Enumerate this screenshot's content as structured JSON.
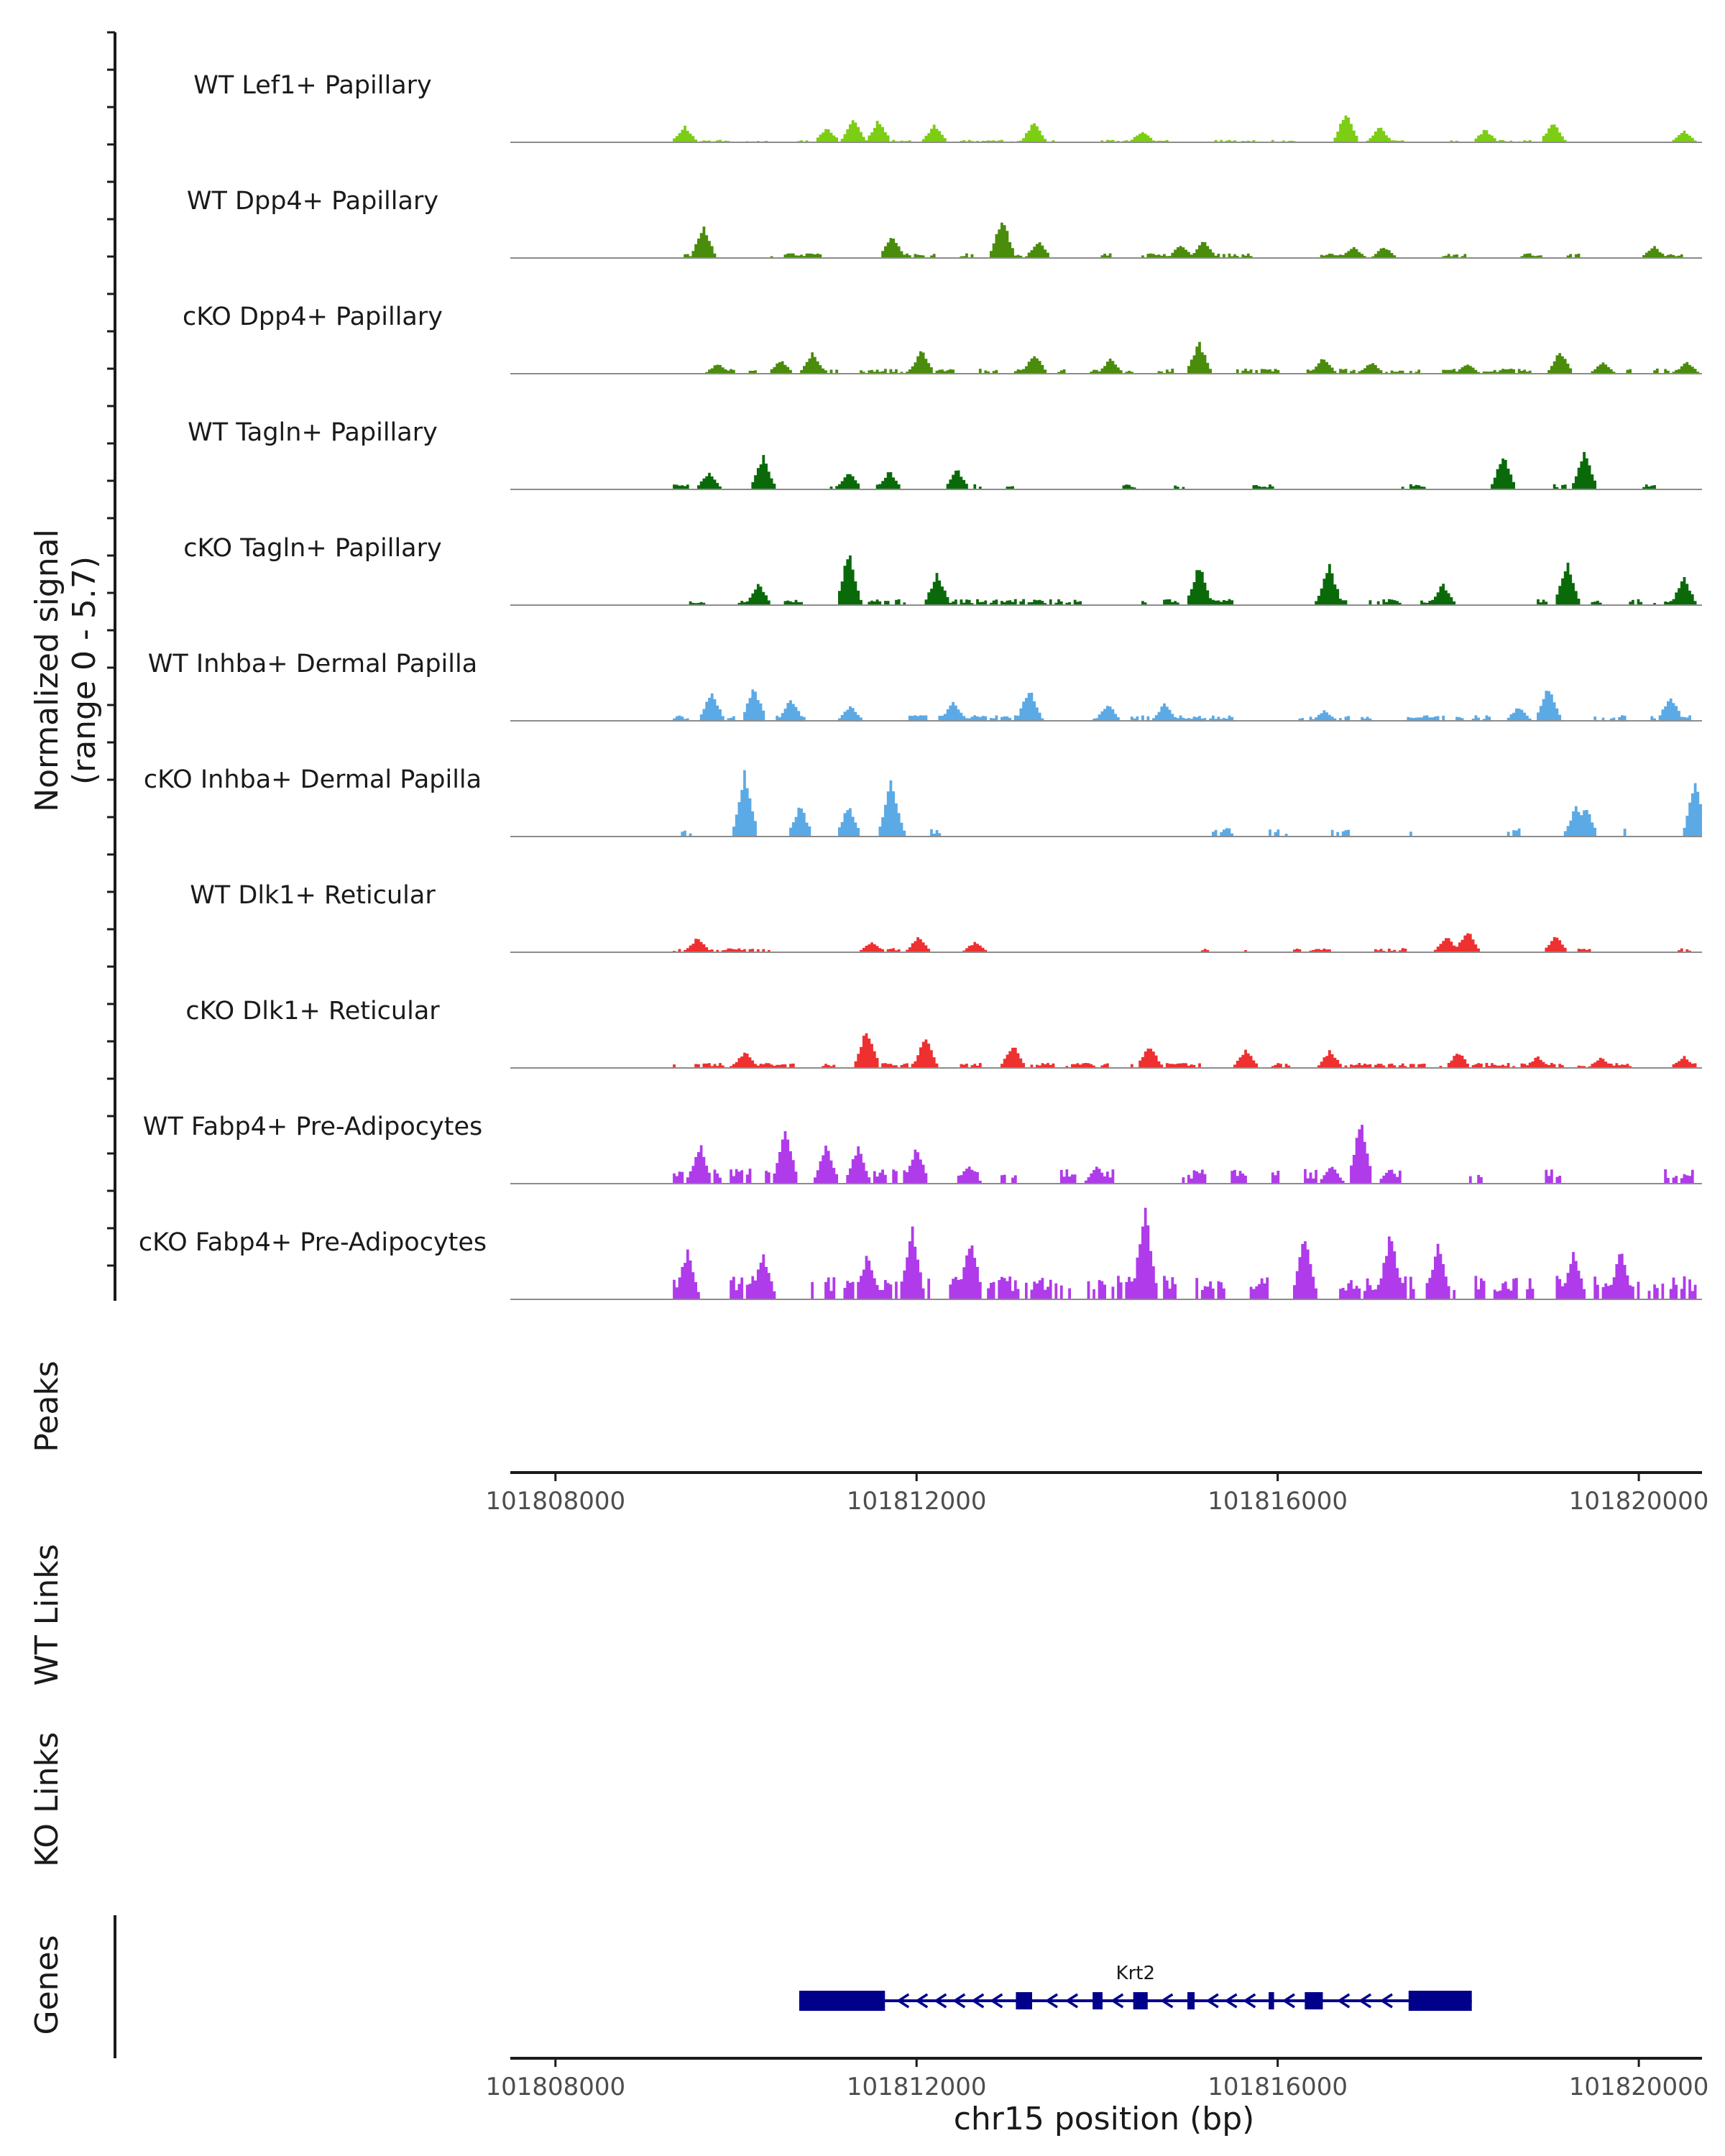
{
  "chart_data": {
    "type": "area",
    "title": "",
    "region": {
      "chromosome": "chr15",
      "start": 101807500,
      "end": 101820700
    },
    "y_axis_label_line1": "Normalized signal",
    "y_axis_label_line2": "(range 0 - 5.7)",
    "ylim": [
      0,
      5.7
    ],
    "x_ticks": [
      "101808000",
      "101812000",
      "101816000",
      "101820000"
    ],
    "x_tick_values": [
      101808000,
      101812000,
      101816000,
      101820000
    ],
    "xlabel": "chr15 position (bp)",
    "panel_labels": {
      "peaks": "Peaks",
      "wt_links": "WT Links",
      "ko_links": "KO Links",
      "genes": "Genes"
    },
    "gene": {
      "name": "Krt2",
      "start": 101810700,
      "end": 101818150,
      "strand": "-",
      "exons": [
        [
          101810700,
          101811650
        ],
        [
          101813100,
          101813280
        ],
        [
          101813950,
          101814060
        ],
        [
          101814400,
          101814560
        ],
        [
          101815000,
          101815080
        ],
        [
          101815900,
          101815960
        ],
        [
          101816300,
          101816500
        ],
        [
          101817450,
          101818150
        ]
      ]
    },
    "series": [
      {
        "name": "WT Lef1+ Papillary",
        "color": "#7CCD14",
        "level": 0.13,
        "gap": 0.55,
        "seed": 11,
        "peaks": [
          [
            101809430,
            1.4
          ],
          [
            101811010,
            1.3
          ],
          [
            101811300,
            2.0
          ],
          [
            101811580,
            1.9
          ],
          [
            101812200,
            1.5
          ],
          [
            101813300,
            1.7
          ],
          [
            101814500,
            1.0
          ],
          [
            101816760,
            2.6
          ],
          [
            101817130,
            1.3
          ],
          [
            101818300,
            1.1
          ],
          [
            101819050,
            1.7
          ],
          [
            101820500,
            1.0
          ]
        ]
      },
      {
        "name": "WT Dpp4+ Papillary",
        "color": "#4A8C0B",
        "level": 0.25,
        "gap": 0.65,
        "seed": 23,
        "peaks": [
          [
            101809640,
            2.6
          ],
          [
            101811730,
            1.9
          ],
          [
            101812950,
            3.5
          ],
          [
            101813350,
            1.5
          ],
          [
            101814930,
            1.2
          ],
          [
            101815180,
            1.5
          ],
          [
            101816840,
            1.0
          ],
          [
            101817180,
            1.0
          ],
          [
            101820170,
            1.0
          ]
        ]
      },
      {
        "name": "cKO Dpp4+ Papillary",
        "color": "#4A8C0B",
        "level": 0.27,
        "gap": 0.42,
        "seed": 37,
        "peaks": [
          [
            101809800,
            0.9
          ],
          [
            101810500,
            1.2
          ],
          [
            101810850,
            1.8
          ],
          [
            101812060,
            2.0
          ],
          [
            101813310,
            1.7
          ],
          [
            101814150,
            1.3
          ],
          [
            101815130,
            2.7
          ],
          [
            101816510,
            1.4
          ],
          [
            101817040,
            1.0
          ],
          [
            101818100,
            0.9
          ],
          [
            101819130,
            2.0
          ],
          [
            101819600,
            1.0
          ],
          [
            101820530,
            1.0
          ]
        ]
      },
      {
        "name": "WT Tagln+ Papillary",
        "color": "#0A6A0A",
        "level": 0.28,
        "gap": 0.8,
        "seed": 41,
        "peaks": [
          [
            101809700,
            1.5
          ],
          [
            101810300,
            2.9
          ],
          [
            101811250,
            1.6
          ],
          [
            101811700,
            1.6
          ],
          [
            101812450,
            1.7
          ],
          [
            101818500,
            3.0
          ],
          [
            101819400,
            3.2
          ]
        ]
      },
      {
        "name": "cKO Tagln+ Papillary",
        "color": "#0A6A0A",
        "level": 0.32,
        "gap": 0.48,
        "seed": 53,
        "peaks": [
          [
            101810250,
            1.9
          ],
          [
            101811250,
            4.5
          ],
          [
            101812230,
            2.8
          ],
          [
            101815130,
            3.5
          ],
          [
            101816570,
            3.5
          ],
          [
            101817830,
            1.8
          ],
          [
            101819210,
            3.7
          ],
          [
            101820500,
            2.4
          ]
        ]
      },
      {
        "name": "WT Inhba+ Dermal Papilla",
        "color": "#5BAAE6",
        "level": 0.3,
        "gap": 0.4,
        "seed": 67,
        "peaks": [
          [
            101809730,
            2.6
          ],
          [
            101810200,
            2.8
          ],
          [
            101810610,
            1.9
          ],
          [
            101811270,
            1.3
          ],
          [
            101812410,
            1.7
          ],
          [
            101813250,
            2.8
          ],
          [
            101814120,
            1.5
          ],
          [
            101814750,
            1.5
          ],
          [
            101816520,
            0.9
          ],
          [
            101818670,
            1.2
          ],
          [
            101819000,
            2.9
          ],
          [
            101820350,
            2.2
          ]
        ]
      },
      {
        "name": "cKO Inhba+ Dermal Papilla",
        "color": "#5BAAE6",
        "level": 0.45,
        "gap": 0.86,
        "seed": 71,
        "peaks": [
          [
            101810100,
            5.5
          ],
          [
            101810710,
            2.7
          ],
          [
            101811250,
            2.7
          ],
          [
            101811720,
            4.9
          ],
          [
            101819310,
            2.7
          ],
          [
            101819410,
            2.7
          ],
          [
            101820630,
            4.9
          ]
        ]
      },
      {
        "name": "WT Dlk1+ Reticular",
        "color": "#EE3030",
        "level": 0.22,
        "gap": 0.72,
        "seed": 83,
        "peaks": [
          [
            101809580,
            1.3
          ],
          [
            101811500,
            0.9
          ],
          [
            101812020,
            1.3
          ],
          [
            101812650,
            0.9
          ],
          [
            101817870,
            1.4
          ],
          [
            101818100,
            1.9
          ],
          [
            101819080,
            1.4
          ]
        ]
      },
      {
        "name": "cKO Dlk1+ Reticular",
        "color": "#EE3030",
        "level": 0.27,
        "gap": 0.4,
        "seed": 97,
        "peaks": [
          [
            101810100,
            1.4
          ],
          [
            101811450,
            3.4
          ],
          [
            101812100,
            2.6
          ],
          [
            101813070,
            2.0
          ],
          [
            101814580,
            2.0
          ],
          [
            101815650,
            1.6
          ],
          [
            101816580,
            1.5
          ],
          [
            101818000,
            1.4
          ],
          [
            101818880,
            1.0
          ],
          [
            101819580,
            0.9
          ],
          [
            101820500,
            1.0
          ]
        ]
      },
      {
        "name": "WT Fabp4+ Pre-Adipocytes",
        "color": "#B03BEA",
        "level": 0.8,
        "gap": 0.68,
        "seed": 101,
        "peaks": [
          [
            101809600,
            3.4
          ],
          [
            101810550,
            4.8
          ],
          [
            101811000,
            3.3
          ],
          [
            101811350,
            3.2
          ],
          [
            101812000,
            3.3
          ],
          [
            101812580,
            1.6
          ],
          [
            101814000,
            1.5
          ],
          [
            101816600,
            1.6
          ],
          [
            101816920,
            5.3
          ],
          [
            101817250,
            1.3
          ]
        ]
      },
      {
        "name": "cKO Fabp4+ Pre-Adipocytes",
        "color": "#B03BEA",
        "level": 1.25,
        "gap": 0.28,
        "seed": 113,
        "peaks": [
          [
            101809460,
            4.2
          ],
          [
            101810300,
            4.1
          ],
          [
            101811460,
            4.0
          ],
          [
            101811950,
            6.1
          ],
          [
            101812600,
            5.4
          ],
          [
            101814530,
            8.0
          ],
          [
            101816300,
            5.4
          ],
          [
            101817250,
            5.9
          ],
          [
            101817780,
            4.7
          ],
          [
            101819280,
            4.1
          ],
          [
            101819800,
            4.1
          ]
        ]
      }
    ]
  }
}
